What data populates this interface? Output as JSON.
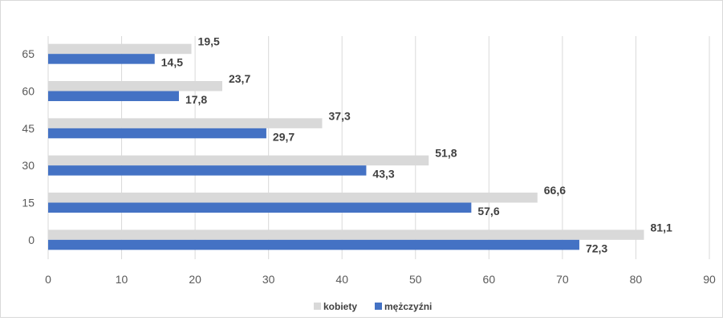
{
  "chart_data": {
    "type": "bar",
    "orientation": "horizontal",
    "categories": [
      "0",
      "15",
      "30",
      "45",
      "60",
      "65"
    ],
    "series": [
      {
        "name": "kobiety",
        "color": "#d9d9d9",
        "values": [
          81.1,
          66.6,
          51.8,
          37.3,
          23.7,
          19.5
        ],
        "labels": [
          "81,1",
          "66,6",
          "51,8",
          "37,3",
          "23,7",
          "19,5"
        ]
      },
      {
        "name": "mężczyźni",
        "color": "#4472c4",
        "values": [
          72.3,
          57.6,
          43.3,
          29.7,
          17.8,
          14.5
        ],
        "labels": [
          "72,3",
          "57,6",
          "43,3",
          "29,7",
          "17,8",
          "14,5"
        ]
      }
    ],
    "xlim": [
      0,
      90
    ],
    "xticks": [
      "0",
      "10",
      "20",
      "30",
      "40",
      "50",
      "60",
      "70",
      "80",
      "90"
    ],
    "grid": true,
    "legend_position": "bottom",
    "title": "",
    "xlabel": "",
    "ylabel": ""
  }
}
